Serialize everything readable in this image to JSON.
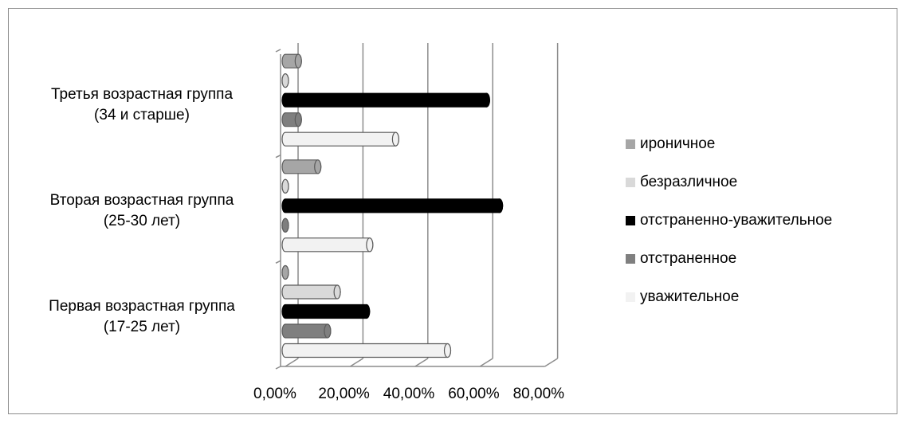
{
  "chart_data": {
    "type": "bar",
    "orientation": "horizontal",
    "categories": [
      "Первая возрастная группа (17-25 лет)",
      "Вторая возрастная группа (25-30 лет)",
      "Третья возрастная группа (34 и старше)"
    ],
    "category_lines": [
      [
        "Первая возрастная группа",
        "(17-25 лет)"
      ],
      [
        "Вторая возрастная группа",
        "(25-30 лет)"
      ],
      [
        "Третья возрастная группа",
        "(34 и старше)"
      ]
    ],
    "series": [
      {
        "name": "уважительное",
        "color": "#f2f2f2",
        "values": [
          50,
          26,
          34
        ]
      },
      {
        "name": "отстраненное",
        "color": "#7f7f7f",
        "values": [
          13,
          0,
          4
        ]
      },
      {
        "name": "отстраненно-уважительное",
        "color": "#000000",
        "values": [
          25,
          66,
          62
        ]
      },
      {
        "name": "безразличное",
        "color": "#d9d9d9",
        "values": [
          16,
          0,
          0
        ]
      },
      {
        "name": "ироничное",
        "color": "#a6a6a6",
        "values": [
          0,
          10,
          4
        ]
      }
    ],
    "legend_order": [
      "ироничное",
      "безразличное",
      "отстраненно-уважительное",
      "отстраненное",
      "уважительное"
    ],
    "xlim": [
      0,
      80
    ],
    "x_ticks": [
      "0,00%",
      "20,00%",
      "40,00%",
      "60,00%",
      "80,00%"
    ],
    "grid": true,
    "legend_position": "right",
    "title": "",
    "xlabel": "",
    "ylabel": ""
  }
}
